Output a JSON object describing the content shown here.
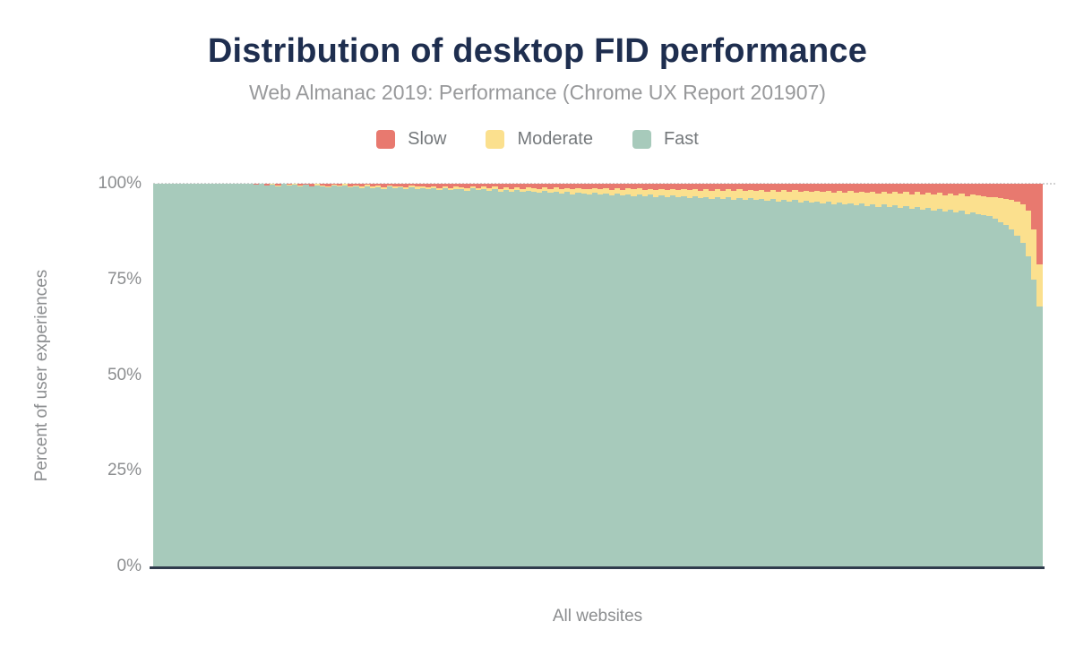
{
  "header": {
    "title": "Distribution of desktop FID performance",
    "subtitle": "Web Almanac 2019: Performance (Chrome UX Report 201907)"
  },
  "legend": {
    "items": [
      {
        "label": "Slow",
        "color": "#e8796f"
      },
      {
        "label": "Moderate",
        "color": "#fbe08e"
      },
      {
        "label": "Fast",
        "color": "#a7cabb"
      }
    ]
  },
  "chart_data": {
    "type": "bar",
    "stacked": true,
    "stack_total": 100,
    "title": "Distribution of desktop FID performance",
    "subtitle": "Web Almanac 2019: Performance (Chrome UX Report 201907)",
    "xlabel": "All websites",
    "ylabel": "Percent of user experiences",
    "ylim": [
      0,
      100
    ],
    "yticks": [
      "100%",
      "75%",
      "50%",
      "25%",
      "0%"
    ],
    "grid": "dotted line at 100% only",
    "legend_position": "top",
    "colors": {
      "slow": "#e8796f",
      "moderate": "#fbe08e",
      "fast": "#a7cabb"
    },
    "axis_color": "#2f3b4c",
    "series": [
      {
        "name": "Slow",
        "color": "#e8796f",
        "values": [
          0,
          0,
          0,
          0,
          0,
          0,
          0,
          0,
          0,
          0,
          0,
          0,
          0,
          0,
          0,
          0,
          0,
          0,
          0.3,
          0.1,
          0.4,
          0,
          0.5,
          0.1,
          0.3,
          0,
          0.5,
          0.2,
          0.6,
          0.1,
          0.4,
          0.6,
          0.2,
          0.5,
          0.1,
          0.7,
          0.5,
          0.8,
          0.3,
          0.7,
          0.5,
          0.9,
          0.4,
          0.8,
          0.6,
          0.9,
          0.5,
          0.8,
          0.6,
          1.0,
          0.7,
          1.1,
          0.6,
          1.2,
          0.8,
          1.0,
          1.2,
          0.7,
          1.1,
          0.8,
          1.2,
          0.8,
          1.3,
          0.9,
          1.4,
          0.9,
          1.3,
          1.0,
          1.1,
          1.4,
          1.0,
          1.4,
          1.0,
          1.5,
          1.1,
          1.4,
          1.1,
          1.3,
          1.5,
          1.1,
          1.4,
          1.2,
          1.6,
          1.2,
          1.6,
          1.2,
          1.5,
          1.2,
          1.6,
          1.3,
          1.7,
          1.3,
          1.6,
          1.3,
          1.7,
          1.4,
          1.7,
          1.4,
          1.8,
          1.4,
          1.8,
          1.5,
          1.8,
          1.5,
          1.9,
          1.5,
          1.9,
          1.6,
          1.9,
          1.6,
          2.0,
          1.6,
          2.0,
          1.7,
          2.1,
          1.7,
          2.1,
          1.8,
          2.2,
          1.8,
          2.2,
          1.8,
          2.3,
          1.9,
          2.3,
          1.9,
          2.4,
          2.0,
          2.4,
          2.0,
          2.5,
          2.0,
          2.6,
          2.1,
          2.6,
          2.2,
          2.7,
          2.2,
          2.8,
          2.3,
          2.9,
          2.4,
          3.0,
          2.5,
          3.1,
          2.6,
          3.2,
          2.7,
          3.0,
          3.3,
          3.4,
          3.6,
          3.8,
          4.0,
          4.3,
          4.8,
          5.5,
          7.0,
          12.0,
          21.0
        ]
      },
      {
        "name": "Moderate",
        "color": "#fbe08e",
        "values": [
          0,
          0,
          0,
          0,
          0,
          0,
          0,
          0,
          0,
          0,
          0,
          0,
          0,
          0,
          0,
          0,
          0,
          0,
          0,
          0,
          0.1,
          0.2,
          0.1,
          0,
          0.1,
          0.2,
          0.2,
          0.1,
          0.2,
          0.3,
          0.2,
          0.3,
          0.3,
          0.3,
          0.3,
          0.3,
          0.3,
          0.4,
          0.4,
          0.4,
          0.4,
          0.4,
          0.4,
          0.4,
          0.4,
          0.5,
          0.4,
          0.5,
          0.5,
          0.5,
          0.5,
          0.5,
          0.5,
          0.5,
          0.5,
          0.5,
          0.6,
          0.5,
          0.6,
          0.6,
          0.7,
          0.7,
          0.7,
          0.7,
          0.7,
          0.8,
          0.9,
          0.8,
          0.9,
          0.9,
          0.9,
          1.0,
          1.1,
          1.1,
          1.1,
          1.3,
          1.2,
          1.2,
          1.4,
          1.3,
          1.4,
          1.3,
          1.4,
          1.4,
          1.5,
          1.5,
          1.7,
          1.6,
          1.7,
          1.6,
          1.7,
          1.7,
          1.9,
          1.8,
          1.9,
          1.8,
          2.0,
          1.9,
          2.0,
          2.0,
          2.1,
          2.0,
          2.2,
          2.1,
          2.2,
          2.2,
          2.3,
          2.2,
          2.4,
          2.3,
          2.5,
          2.4,
          2.6,
          2.5,
          2.7,
          2.6,
          2.8,
          2.7,
          2.8,
          2.8,
          3.0,
          3.0,
          3.1,
          3.0,
          3.2,
          3.2,
          3.3,
          3.2,
          3.4,
          3.4,
          3.5,
          3.5,
          3.6,
          3.6,
          3.8,
          3.7,
          3.9,
          3.9,
          4.0,
          4.0,
          4.1,
          4.2,
          4.3,
          4.3,
          4.5,
          4.5,
          4.7,
          4.7,
          5.0,
          5.0,
          5.1,
          5.6,
          6.2,
          6.8,
          7.7,
          8.7,
          10.0,
          12.0,
          13.0,
          11.0
        ]
      },
      {
        "name": "Fast",
        "color": "#a7cabb",
        "values": [
          100,
          100,
          100,
          100,
          100,
          100,
          100,
          100,
          100,
          100,
          100,
          100,
          100,
          100,
          100,
          100,
          100,
          100,
          99.7,
          99.9,
          99.5,
          99.8,
          99.4,
          99.9,
          99.6,
          99.8,
          99.3,
          99.7,
          99.2,
          99.6,
          99.4,
          99.1,
          99.5,
          99.2,
          99.6,
          99.0,
          99.2,
          98.8,
          99.3,
          98.9,
          99.1,
          98.7,
          99.2,
          98.8,
          99.0,
          98.6,
          99.1,
          98.7,
          98.9,
          98.5,
          98.8,
          98.4,
          98.9,
          98.3,
          98.7,
          98.5,
          98.2,
          98.8,
          98.3,
          98.6,
          98.1,
          98.5,
          98.0,
          98.4,
          97.9,
          98.3,
          97.8,
          98.2,
          98.0,
          97.7,
          98.1,
          97.6,
          97.9,
          97.4,
          97.8,
          97.3,
          97.7,
          97.5,
          97.1,
          97.6,
          97.2,
          97.5,
          97.0,
          97.4,
          96.9,
          97.3,
          96.8,
          97.2,
          96.7,
          97.1,
          96.6,
          97.0,
          96.5,
          96.9,
          96.4,
          96.8,
          96.3,
          96.7,
          96.2,
          96.6,
          96.1,
          96.5,
          96.0,
          96.4,
          95.9,
          96.3,
          95.8,
          96.2,
          95.7,
          96.1,
          95.5,
          96.0,
          95.4,
          95.8,
          95.2,
          95.7,
          95.1,
          95.5,
          95.0,
          95.4,
          94.8,
          95.2,
          94.6,
          95.1,
          94.5,
          94.9,
          94.3,
          94.8,
          94.2,
          94.6,
          94.0,
          94.5,
          93.8,
          94.3,
          93.6,
          94.1,
          93.4,
          93.9,
          93.2,
          93.7,
          93.0,
          93.4,
          92.7,
          93.2,
          92.4,
          92.9,
          92.1,
          92.6,
          92.0,
          91.7,
          91.5,
          90.8,
          90.0,
          89.2,
          88.0,
          86.5,
          84.5,
          81.0,
          75.0,
          68.0
        ]
      }
    ]
  }
}
